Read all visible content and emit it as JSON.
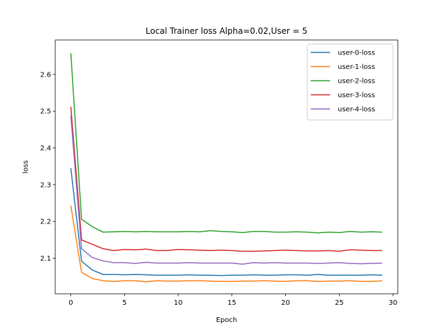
{
  "chart_data": {
    "type": "line",
    "title": "Local Trainer loss Alpha=0.02,User = 5",
    "xlabel": "Epoch",
    "ylabel": "loss",
    "xlim": [
      -1.45,
      30.45
    ],
    "ylim": [
      2.0035,
      2.6935
    ],
    "xticks": [
      0,
      5,
      10,
      15,
      20,
      25,
      30
    ],
    "yticks": [
      2.1,
      2.2,
      2.3,
      2.4,
      2.5,
      2.6
    ],
    "grid": false,
    "legend_position": "top-right",
    "x": [
      0,
      1,
      2,
      3,
      4,
      5,
      6,
      7,
      8,
      9,
      10,
      11,
      12,
      13,
      14,
      15,
      16,
      17,
      18,
      19,
      20,
      21,
      22,
      23,
      24,
      25,
      26,
      27,
      28,
      29
    ],
    "series": [
      {
        "name": "user-0-loss",
        "color": "#1f77b4",
        "values": [
          2.345,
          2.092,
          2.068,
          2.056,
          2.056,
          2.055,
          2.056,
          2.055,
          2.054,
          2.054,
          2.054,
          2.055,
          2.054,
          2.054,
          2.053,
          2.054,
          2.054,
          2.055,
          2.054,
          2.054,
          2.055,
          2.055,
          2.054,
          2.056,
          2.054,
          2.054,
          2.054,
          2.054,
          2.055,
          2.054
        ]
      },
      {
        "name": "user-1-loss",
        "color": "#ff7f0e",
        "values": [
          2.243,
          2.062,
          2.045,
          2.039,
          2.037,
          2.039,
          2.039,
          2.036,
          2.039,
          2.038,
          2.038,
          2.039,
          2.039,
          2.038,
          2.037,
          2.037,
          2.038,
          2.038,
          2.039,
          2.038,
          2.037,
          2.039,
          2.039,
          2.037,
          2.038,
          2.038,
          2.039,
          2.037,
          2.037,
          2.039
        ]
      },
      {
        "name": "user-2-loss",
        "color": "#2ca02c",
        "values": [
          2.658,
          2.206,
          2.186,
          2.171,
          2.172,
          2.173,
          2.172,
          2.173,
          2.172,
          2.172,
          2.172,
          2.173,
          2.172,
          2.175,
          2.173,
          2.172,
          2.17,
          2.173,
          2.173,
          2.171,
          2.171,
          2.172,
          2.171,
          2.169,
          2.171,
          2.17,
          2.173,
          2.171,
          2.172,
          2.171
        ]
      },
      {
        "name": "user-3-loss",
        "color": "#d62728",
        "values": [
          2.512,
          2.15,
          2.138,
          2.126,
          2.121,
          2.124,
          2.123,
          2.125,
          2.121,
          2.121,
          2.124,
          2.123,
          2.122,
          2.121,
          2.122,
          2.121,
          2.119,
          2.119,
          2.12,
          2.121,
          2.122,
          2.121,
          2.12,
          2.12,
          2.121,
          2.119,
          2.123,
          2.122,
          2.121,
          2.121
        ]
      },
      {
        "name": "user-4-loss",
        "color": "#9467bd",
        "values": [
          2.488,
          2.126,
          2.102,
          2.093,
          2.088,
          2.088,
          2.086,
          2.089,
          2.087,
          2.087,
          2.087,
          2.088,
          2.087,
          2.087,
          2.087,
          2.087,
          2.084,
          2.088,
          2.087,
          2.088,
          2.087,
          2.087,
          2.087,
          2.086,
          2.087,
          2.088,
          2.086,
          2.085,
          2.086,
          2.087
        ]
      }
    ]
  }
}
